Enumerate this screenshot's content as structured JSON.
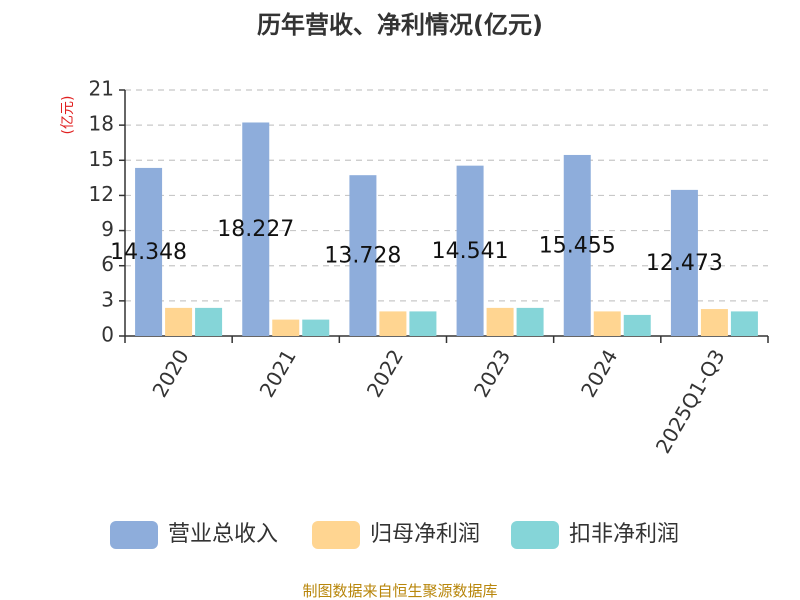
{
  "chart_data": {
    "type": "bar",
    "title": "历年营收、净利情况(亿元)",
    "ylabel": "(亿元)",
    "xlabel": "",
    "categories": [
      "2020",
      "2021",
      "2022",
      "2023",
      "2024",
      "2025Q1-Q3"
    ],
    "ylim": [
      0,
      21
    ],
    "yticks": [
      0,
      3,
      6,
      9,
      12,
      15,
      18,
      21
    ],
    "grid": true,
    "legend_position": "bottom",
    "series": [
      {
        "name": "营业总收入",
        "color": "#8eaddb",
        "values": [
          14.348,
          18.227,
          13.728,
          14.541,
          15.455,
          12.473
        ],
        "labels": [
          "14.348",
          "18.227",
          "13.728",
          "14.541",
          "15.455",
          "12.473"
        ]
      },
      {
        "name": "归母净利润",
        "color": "#ffd591",
        "values": [
          2.4,
          1.4,
          2.1,
          2.4,
          2.1,
          2.3
        ]
      },
      {
        "name": "扣非净利润",
        "color": "#85d5d8",
        "values": [
          2.4,
          1.4,
          2.1,
          2.4,
          1.8,
          2.1
        ]
      }
    ]
  },
  "source_note": "制图数据来自恒生聚源数据库"
}
